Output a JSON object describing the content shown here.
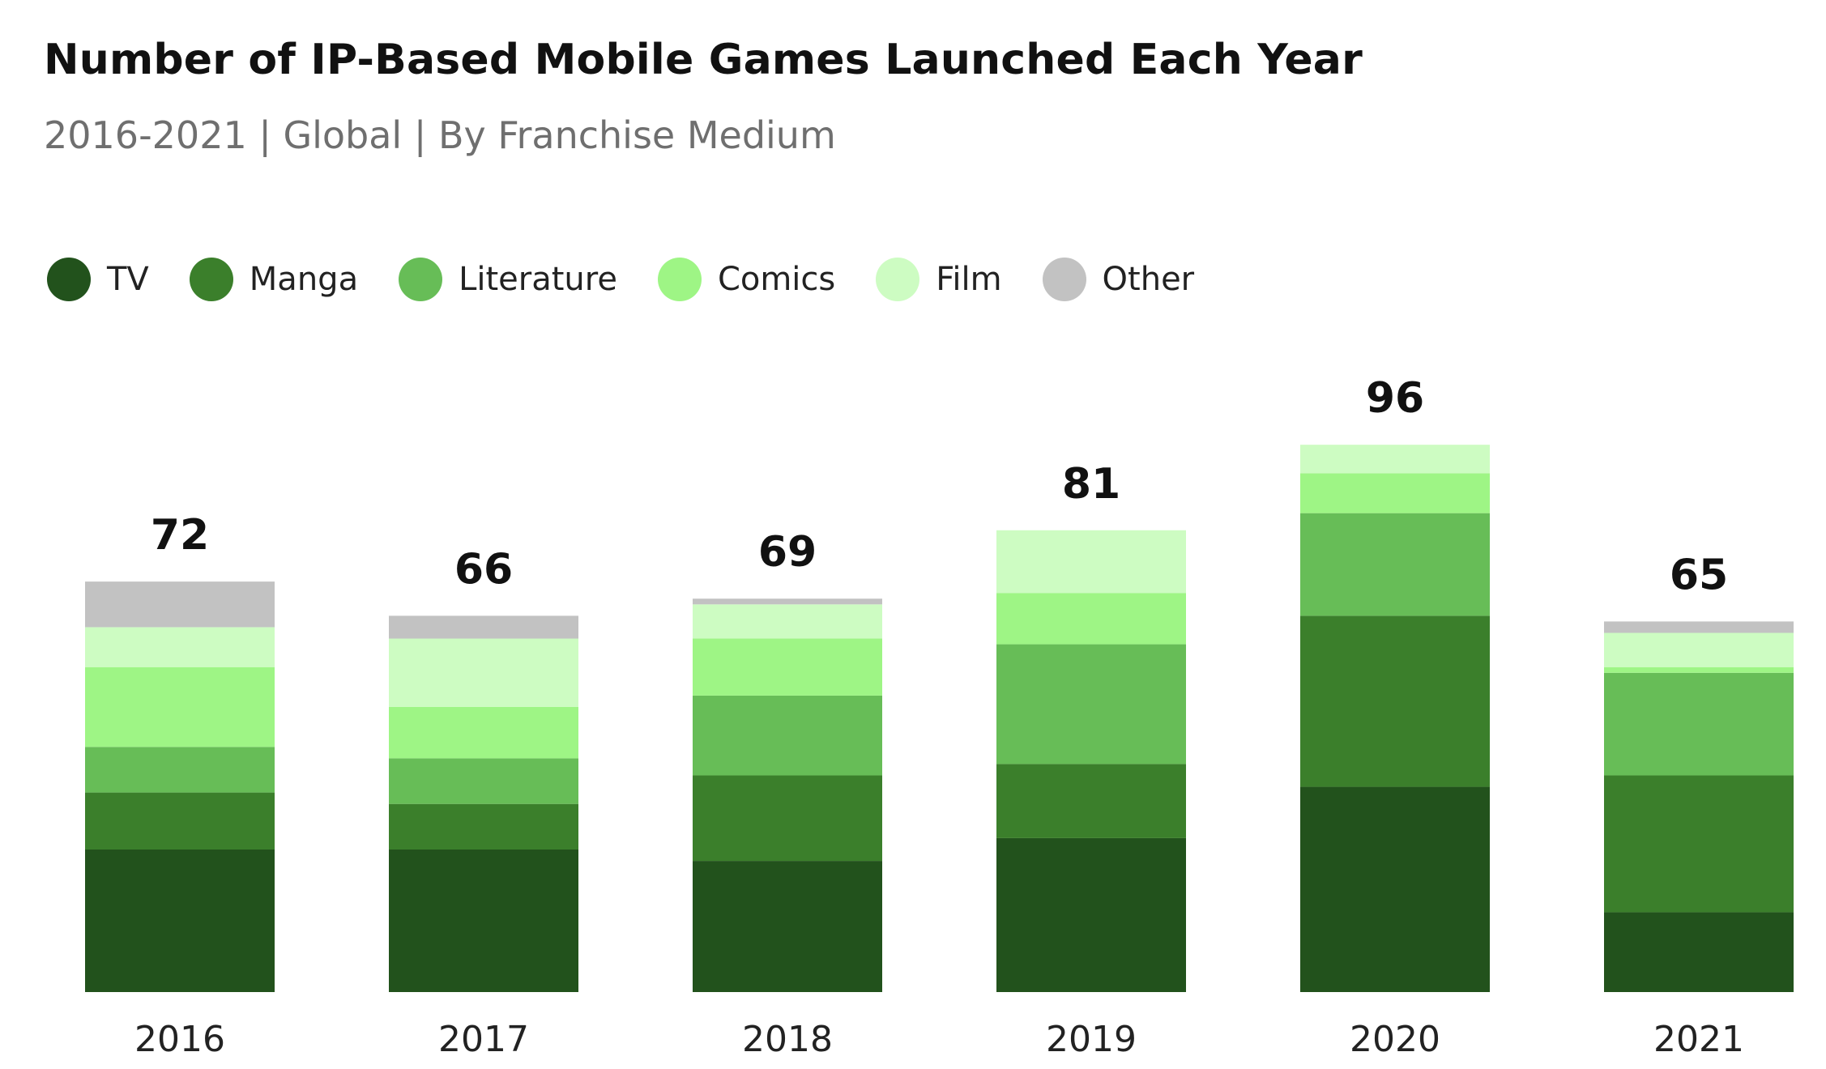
{
  "chart_data": {
    "type": "bar",
    "stacked": true,
    "title": "Number of IP-Based Mobile Games Launched Each Year",
    "subtitle": "2016-2021 | Global | By Franchise Medium",
    "xlabel": "",
    "ylabel": "",
    "ylim": [
      0,
      96
    ],
    "grid": false,
    "legend_position": "top-left",
    "categories": [
      "2016",
      "2017",
      "2018",
      "2019",
      "2020",
      "2021"
    ],
    "totals": [
      72,
      66,
      69,
      81,
      96,
      65
    ],
    "series": [
      {
        "name": "TV",
        "color": "#22521c",
        "values": [
          25,
          25,
          23,
          27,
          36,
          14
        ]
      },
      {
        "name": "Manga",
        "color": "#3b7f2b",
        "values": [
          10,
          8,
          15,
          13,
          30,
          24
        ]
      },
      {
        "name": "Literature",
        "color": "#67bd57",
        "values": [
          8,
          8,
          14,
          21,
          18,
          18
        ]
      },
      {
        "name": "Comics",
        "color": "#9ef585",
        "values": [
          14,
          9,
          10,
          9,
          7,
          1
        ]
      },
      {
        "name": "Film",
        "color": "#cdfcc2",
        "values": [
          7,
          12,
          6,
          11,
          5,
          6
        ]
      },
      {
        "name": "Other",
        "color": "#c2c2c2",
        "values": [
          8,
          4,
          1,
          0,
          0,
          2
        ]
      }
    ]
  }
}
